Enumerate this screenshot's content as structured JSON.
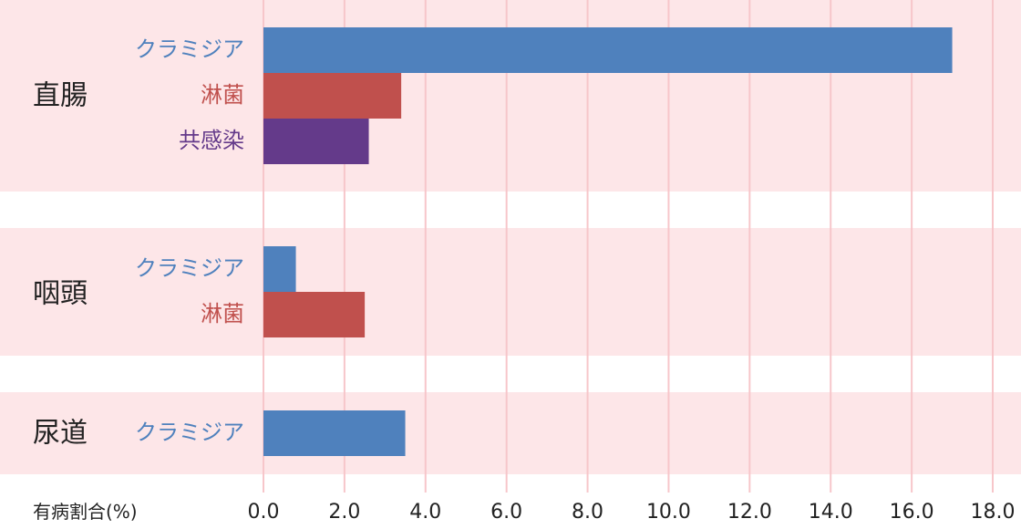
{
  "chart_data": {
    "type": "bar",
    "orientation": "horizontal",
    "xlabel": "有病割合(%)",
    "xlim": [
      0,
      18
    ],
    "xticks": [
      "0.0",
      "2.0",
      "4.0",
      "6.0",
      "8.0",
      "10.0",
      "12.0",
      "14.0",
      "16.0",
      "18.0"
    ],
    "grid": true,
    "groups": [
      {
        "name": "直腸",
        "bars": [
          {
            "label": "クラミジア",
            "value": 17.0,
            "color": "#4f81bd"
          },
          {
            "label": "淋菌",
            "value": 3.4,
            "color": "#c0504d"
          },
          {
            "label": "共感染",
            "value": 2.6,
            "color": "#643a8a"
          }
        ]
      },
      {
        "name": "咽頭",
        "bars": [
          {
            "label": "クラミジア",
            "value": 0.8,
            "color": "#4f81bd"
          },
          {
            "label": "淋菌",
            "value": 2.5,
            "color": "#c0504d"
          }
        ]
      },
      {
        "name": "尿道",
        "bars": [
          {
            "label": "クラミジア",
            "value": 3.5,
            "color": "#4f81bd"
          }
        ]
      }
    ]
  }
}
